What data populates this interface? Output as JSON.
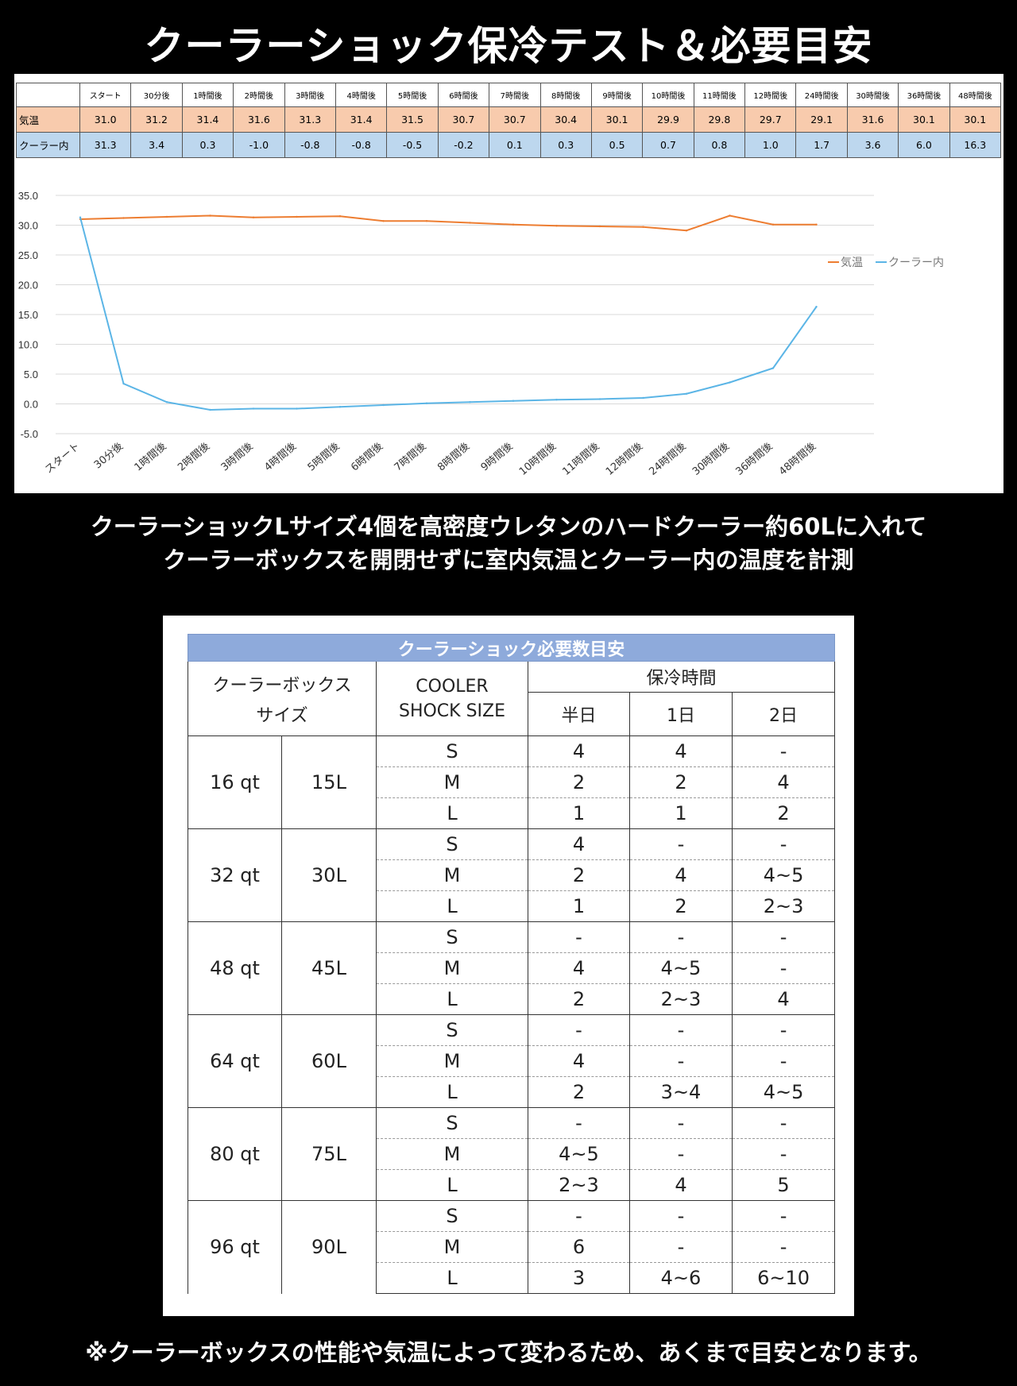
{
  "title": "クーラーショック保冷テスト＆必要目安",
  "data_table": {
    "headers": [
      "スタート",
      "30分後",
      "1時間後",
      "2時間後",
      "3時間後",
      "4時間後",
      "5時間後",
      "6時間後",
      "7時間後",
      "8時間後",
      "9時間後",
      "10時間後",
      "11時間後",
      "12時間後",
      "24時間後",
      "30時間後",
      "36時間後",
      "48時間後"
    ],
    "rows": [
      {
        "label": "気温",
        "values": [
          "31.0",
          "31.2",
          "31.4",
          "31.6",
          "31.3",
          "31.4",
          "31.5",
          "30.7",
          "30.7",
          "30.4",
          "30.1",
          "29.9",
          "29.8",
          "29.7",
          "29.1",
          "31.6",
          "30.1",
          "30.1"
        ]
      },
      {
        "label": "クーラー内",
        "values": [
          "31.3",
          "3.4",
          "0.3",
          "-1.0",
          "-0.8",
          "-0.8",
          "-0.5",
          "-0.2",
          "0.1",
          "0.3",
          "0.5",
          "0.7",
          "0.8",
          "1.0",
          "1.7",
          "3.6",
          "6.0",
          "16.3"
        ]
      }
    ]
  },
  "chart_data": {
    "type": "line",
    "categories": [
      "スタート",
      "30分後",
      "1時間後",
      "2時間後",
      "3時間後",
      "4時間後",
      "5時間後",
      "6時間後",
      "7時間後",
      "8時間後",
      "9時間後",
      "10時間後",
      "11時間後",
      "12時間後",
      "24時間後",
      "30時間後",
      "36時間後",
      "48時間後"
    ],
    "series": [
      {
        "name": "気温",
        "color": "#ed7d31",
        "values": [
          31.0,
          31.2,
          31.4,
          31.6,
          31.3,
          31.4,
          31.5,
          30.7,
          30.7,
          30.4,
          30.1,
          29.9,
          29.8,
          29.7,
          29.1,
          31.6,
          30.1,
          30.1
        ]
      },
      {
        "name": "クーラー内",
        "color": "#5bb5e6",
        "values": [
          31.3,
          3.4,
          0.3,
          -1.0,
          -0.8,
          -0.8,
          -0.5,
          -0.2,
          0.1,
          0.3,
          0.5,
          0.7,
          0.8,
          1.0,
          1.7,
          3.6,
          6.0,
          16.3
        ]
      }
    ],
    "yticks": [
      "35.0",
      "30.0",
      "25.0",
      "20.0",
      "15.0",
      "10.0",
      "5.0",
      "0.0",
      "-5.0"
    ],
    "ylim": [
      -5,
      35
    ],
    "grid": true,
    "legend": "right"
  },
  "caption": {
    "line1": "クーラーショックLサイズ4個を高密度ウレタンのハードクーラー約60Lに入れて",
    "line2": "クーラーボックスを開閉せずに室内気温とクーラー内の温度を計測"
  },
  "need_table": {
    "title": "クーラーショック必要数目安",
    "col_box_1": "クーラーボックス",
    "col_box_2": "サイズ",
    "col_shock_1": "COOLER",
    "col_shock_2": "SHOCK SIZE",
    "col_time": "保冷時間",
    "col_half": "半日",
    "col_1day": "1日",
    "col_2day": "2日",
    "groups": [
      {
        "qt": "16 qt",
        "liter": "15L",
        "rows": [
          [
            "S",
            "4",
            "4",
            "-"
          ],
          [
            "M",
            "2",
            "2",
            "4"
          ],
          [
            "L",
            "1",
            "1",
            "2"
          ]
        ]
      },
      {
        "qt": "32 qt",
        "liter": "30L",
        "rows": [
          [
            "S",
            "4",
            "-",
            "-"
          ],
          [
            "M",
            "2",
            "4",
            "4~5"
          ],
          [
            "L",
            "1",
            "2",
            "2~3"
          ]
        ]
      },
      {
        "qt": "48 qt",
        "liter": "45L",
        "rows": [
          [
            "S",
            "-",
            "-",
            "-"
          ],
          [
            "M",
            "4",
            "4~5",
            "-"
          ],
          [
            "L",
            "2",
            "2~3",
            "4"
          ]
        ]
      },
      {
        "qt": "64 qt",
        "liter": "60L",
        "rows": [
          [
            "S",
            "-",
            "-",
            "-"
          ],
          [
            "M",
            "4",
            "-",
            "-"
          ],
          [
            "L",
            "2",
            "3~4",
            "4~5"
          ]
        ]
      },
      {
        "qt": "80 qt",
        "liter": "75L",
        "rows": [
          [
            "S",
            "-",
            "-",
            "-"
          ],
          [
            "M",
            "4~5",
            "-",
            "-"
          ],
          [
            "L",
            "2~3",
            "4",
            "5"
          ]
        ]
      },
      {
        "qt": "96 qt",
        "liter": "90L",
        "rows": [
          [
            "S",
            "-",
            "-",
            "-"
          ],
          [
            "M",
            "6",
            "-",
            "-"
          ],
          [
            "L",
            "3",
            "4~6",
            "6~10"
          ]
        ]
      }
    ]
  },
  "footnote": "※クーラーボックスの性能や気温によって変わるため、あくまで目安となります。"
}
